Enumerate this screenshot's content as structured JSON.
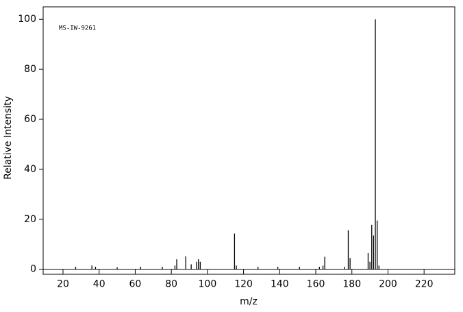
{
  "chart_data": {
    "type": "stem",
    "annotation": "MS-IW-9261",
    "xlabel": "m/z",
    "ylabel": "Relative Intensity",
    "x": [
      27,
      36,
      38,
      50,
      63,
      75,
      82,
      83,
      88,
      91,
      94,
      95,
      96,
      115,
      116,
      128,
      139,
      151,
      162,
      164,
      165,
      176,
      178,
      179,
      189,
      190,
      191,
      192,
      193,
      194,
      195
    ],
    "values": [
      1,
      1.5,
      1,
      0.8,
      1,
      1,
      1.5,
      4,
      5.2,
      2,
      3,
      4,
      3,
      14.3,
      1.5,
      1,
      1,
      1,
      1,
      1.5,
      5,
      1,
      15.6,
      4.5,
      6.5,
      3,
      17.8,
      13.5,
      100,
      19.5,
      1.5
    ],
    "color": "#000000",
    "xlim": [
      9,
      237
    ],
    "ylim": [
      -2,
      105
    ],
    "xticks": [
      20,
      40,
      60,
      80,
      100,
      120,
      140,
      160,
      180,
      200,
      220
    ],
    "yticks": [
      0,
      20,
      40,
      60,
      80,
      100
    ]
  }
}
